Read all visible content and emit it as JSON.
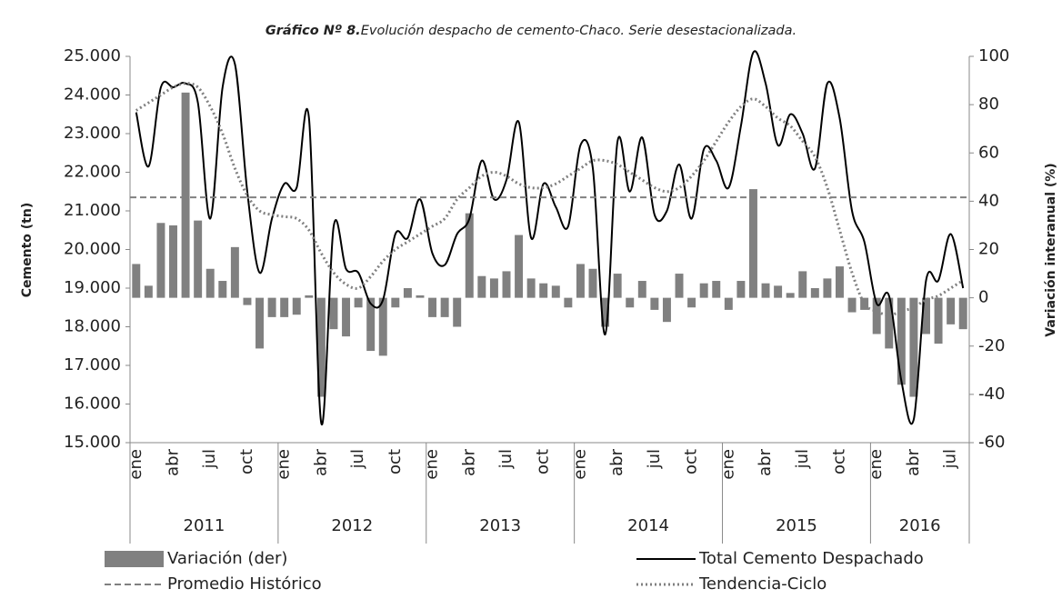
{
  "chart_data": {
    "type": "combo",
    "title": {
      "label": "Gráfico Nº 8.",
      "text": "Evolución despacho de cemento-Chaco. Serie desestacionalizada."
    },
    "ylabel": "Cemento (tn)",
    "y2label": "Variación interanual (%)",
    "categories": [
      "ene",
      null,
      null,
      "abr",
      null,
      null,
      "jul",
      null,
      null,
      "oct",
      null,
      null,
      "ene",
      null,
      null,
      "abr",
      null,
      null,
      "jul",
      null,
      null,
      "oct",
      null,
      null,
      "ene",
      null,
      null,
      "abr",
      null,
      null,
      "jul",
      null,
      null,
      "oct",
      null,
      null,
      "ene",
      null,
      null,
      "abr",
      null,
      null,
      "jul",
      null,
      null,
      "oct",
      null,
      null,
      "ene",
      null,
      null,
      "abr",
      null,
      null,
      "jul",
      null,
      null,
      "oct",
      null,
      null,
      "ene",
      null,
      null,
      "abr",
      null,
      null,
      "jul",
      null
    ],
    "years": [
      "2011",
      "2012",
      "2013",
      "2014",
      "2015",
      "2016"
    ],
    "ylim": [
      15000,
      25000
    ],
    "yticks": [
      {
        "value": 15000,
        "label": "15.000"
      },
      {
        "value": 16000,
        "label": "16.000"
      },
      {
        "value": 17000,
        "label": "17.000"
      },
      {
        "value": 18000,
        "label": "18.000"
      },
      {
        "value": 19000,
        "label": "19.000"
      },
      {
        "value": 20000,
        "label": "20.000"
      },
      {
        "value": 21000,
        "label": "21.000"
      },
      {
        "value": 22000,
        "label": "22.000"
      },
      {
        "value": 23000,
        "label": "23.000"
      },
      {
        "value": 24000,
        "label": "24.000"
      },
      {
        "value": 25000,
        "label": "25.000"
      }
    ],
    "y2lim": [
      -60,
      100
    ],
    "y2ticks": [
      -60,
      -40,
      -20,
      0,
      20,
      40,
      60,
      80,
      100
    ],
    "series": [
      {
        "name": "Variación (der)",
        "type": "bar",
        "axis": "y2",
        "color": "#808080",
        "values": [
          14,
          5,
          31,
          30,
          85,
          32,
          12,
          7,
          21,
          -3,
          -21,
          -8,
          -8,
          -7,
          1,
          -41,
          -13,
          -16,
          -4,
          -22,
          -24,
          -4,
          4,
          1,
          -8,
          -8,
          -12,
          35,
          9,
          8,
          11,
          26,
          8,
          6,
          5,
          -4,
          14,
          12,
          -12,
          10,
          -4,
          7,
          -5,
          -10,
          10,
          -4,
          6,
          7,
          -5,
          7,
          45,
          6,
          5,
          2,
          11,
          4,
          8,
          13,
          -6,
          -5,
          -15,
          -21,
          -36,
          -41,
          -15,
          -19,
          -11,
          -13
        ]
      },
      {
        "name": "Total Cemento Despachado",
        "type": "line",
        "dash": "solid",
        "color": "#000000",
        "values": [
          23550,
          22150,
          24200,
          24200,
          24300,
          23800,
          20800,
          24200,
          24800,
          21500,
          19400,
          20800,
          21700,
          21600,
          23400,
          15500,
          20600,
          19500,
          19400,
          18600,
          18700,
          20400,
          20300,
          21300,
          19900,
          19600,
          20400,
          20800,
          22300,
          21300,
          21800,
          23300,
          20300,
          21700,
          21100,
          20600,
          22700,
          22100,
          17800,
          22800,
          21500,
          22900,
          20900,
          21000,
          22200,
          20800,
          22600,
          22300,
          21600,
          23200,
          25100,
          24300,
          22700,
          23500,
          23000,
          22100,
          24300,
          23400,
          21000,
          20200,
          18600,
          18800,
          16600,
          15600,
          19200,
          19200,
          20400,
          19000
        ]
      },
      {
        "name": "Promedio Histórico",
        "type": "hline",
        "dash": "dashed",
        "color": "#808080",
        "value": 21350
      },
      {
        "name": "Tendencia-Ciclo",
        "type": "line",
        "dash": "dotted",
        "color": "#808080",
        "values": [
          23600,
          23800,
          24000,
          24200,
          24300,
          24200,
          23700,
          23000,
          22100,
          21400,
          21000,
          20900,
          20850,
          20800,
          20500,
          19900,
          19400,
          19100,
          19000,
          19300,
          19700,
          20000,
          20200,
          20400,
          20600,
          20800,
          21300,
          21600,
          21900,
          22000,
          21900,
          21700,
          21600,
          21600,
          21700,
          21900,
          22100,
          22300,
          22300,
          22200,
          22000,
          21800,
          21600,
          21500,
          21600,
          21900,
          22300,
          22800,
          23300,
          23700,
          23900,
          23700,
          23400,
          23200,
          22800,
          22400,
          21600,
          20500,
          19400,
          18600,
          18400,
          18300,
          18400,
          18500,
          18700,
          18800,
          19000,
          19200
        ]
      }
    ],
    "legend": "bottom"
  }
}
